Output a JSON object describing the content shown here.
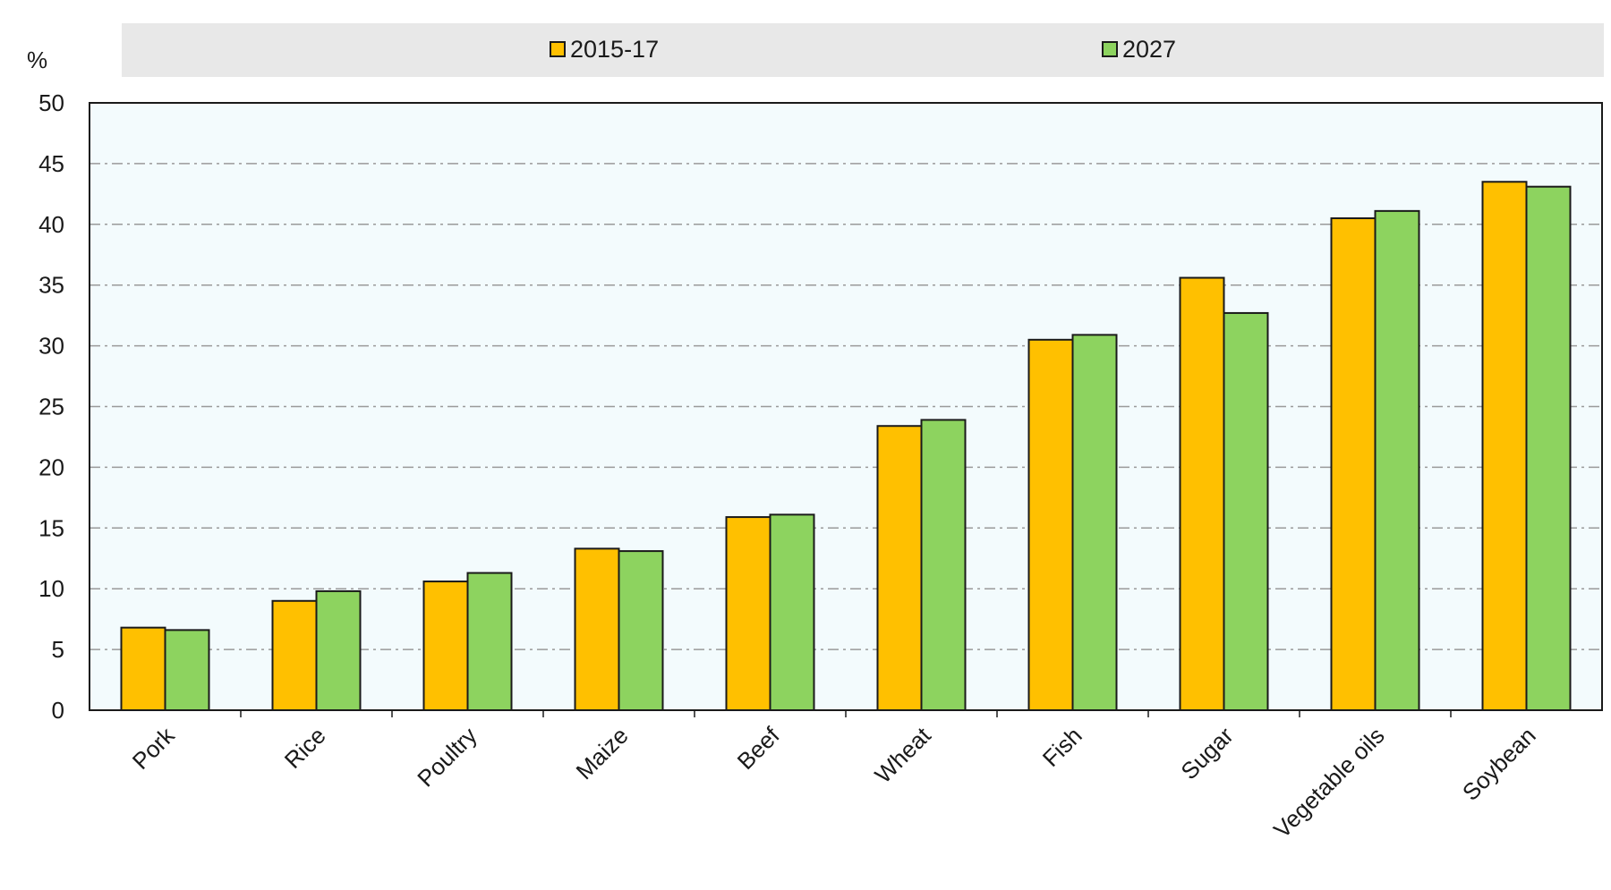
{
  "chart_data": {
    "type": "bar",
    "y_unit_label": "%",
    "title": "",
    "xlabel": "",
    "ylabel": "%",
    "ylim": [
      0,
      50
    ],
    "y_ticks": [
      0,
      5,
      10,
      15,
      20,
      25,
      30,
      35,
      40,
      45,
      50
    ],
    "grid": true,
    "legend_position": "top-center",
    "categories": [
      "Pork",
      "Rice",
      "Poultry",
      "Maize",
      "Beef",
      "Wheat",
      "Fish",
      "Sugar",
      "Vegetable oils",
      "Soybean"
    ],
    "series": [
      {
        "name": "2015-17",
        "color": "#FFC000",
        "values": [
          6.8,
          9.0,
          10.6,
          13.3,
          15.9,
          23.4,
          30.5,
          35.6,
          40.5,
          43.5
        ]
      },
      {
        "name": "2027",
        "color": "#8DD35F",
        "values": [
          6.6,
          9.8,
          11.3,
          13.1,
          16.1,
          23.9,
          30.9,
          32.7,
          41.1,
          43.1
        ]
      }
    ],
    "colors": {
      "plot_background": "#F3FBFD",
      "legend_background": "#E8E8E8",
      "bar_outline": "#1A1A1A",
      "grid": "#9A9A9A"
    }
  }
}
